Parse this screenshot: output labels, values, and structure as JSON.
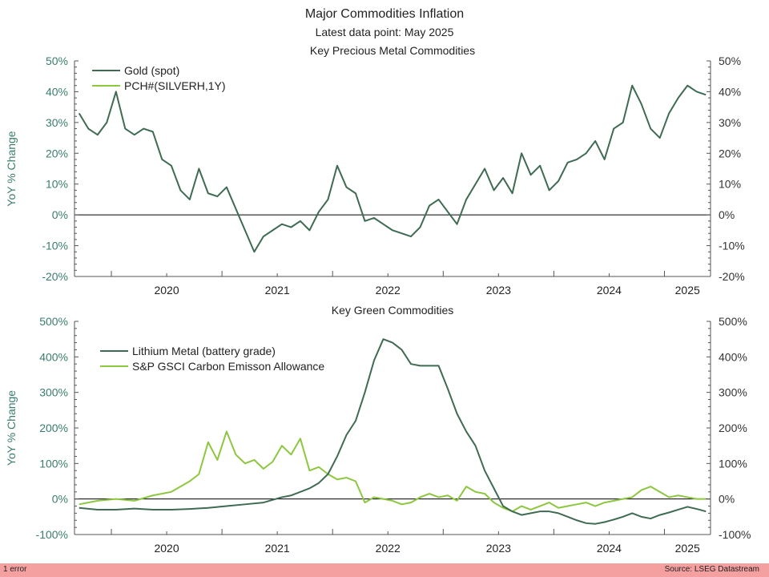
{
  "title": "Major Commodities Inflation",
  "subtitle": "Latest data point: May 2025",
  "footer": {
    "status": "1 error",
    "source": "Source: LSEG Datastream"
  },
  "colors": {
    "dark_green": "#3e6b52",
    "light_green": "#8dc63f",
    "axis_teal": "#3a7d6e",
    "axis": "#555555"
  },
  "chart_data": [
    {
      "type": "line",
      "title": "Key Precious Metal Commodities",
      "ylabel": "YoY % Change",
      "ylim": [
        -20,
        50
      ],
      "yticks": [
        -20,
        -10,
        0,
        10,
        20,
        30,
        40,
        50
      ],
      "ytick_labels": [
        "-20%",
        "-10%",
        "0%",
        "10%",
        "20%",
        "30%",
        "40%",
        "50%"
      ],
      "xlim": [
        "2019-09-01",
        "2025-06-01"
      ],
      "xtick_labels": [
        "2020",
        "2021",
        "2022",
        "2023",
        "2024",
        "2025"
      ],
      "legend_position": "top-left",
      "series": [
        {
          "name": "Gold (spot)",
          "color": "#3e6b52",
          "x": [
            "2019-09",
            "2019-10",
            "2019-11",
            "2019-12",
            "2020-01",
            "2020-02",
            "2020-03",
            "2020-04",
            "2020-05",
            "2020-06",
            "2020-07",
            "2020-08",
            "2020-09",
            "2020-10",
            "2020-11",
            "2020-12",
            "2021-01",
            "2021-02",
            "2021-03",
            "2021-04",
            "2021-05",
            "2021-06",
            "2021-07",
            "2021-08",
            "2021-09",
            "2021-10",
            "2021-11",
            "2021-12",
            "2022-01",
            "2022-02",
            "2022-03",
            "2022-04",
            "2022-05",
            "2022-06",
            "2022-07",
            "2022-08",
            "2022-09",
            "2022-10",
            "2022-11",
            "2022-12",
            "2023-01",
            "2023-02",
            "2023-03",
            "2023-04",
            "2023-05",
            "2023-06",
            "2023-07",
            "2023-08",
            "2023-09",
            "2023-10",
            "2023-11",
            "2023-12",
            "2024-01",
            "2024-02",
            "2024-03",
            "2024-04",
            "2024-05",
            "2024-06",
            "2024-07",
            "2024-08",
            "2024-09",
            "2024-10",
            "2024-11",
            "2024-12",
            "2025-01",
            "2025-02",
            "2025-03",
            "2025-04",
            "2025-05"
          ],
          "values": [
            33,
            28,
            26,
            30,
            40,
            28,
            26,
            28,
            27,
            18,
            16,
            8,
            5,
            15,
            7,
            6,
            9,
            2,
            -5,
            -12,
            -7,
            -5,
            -3,
            -4,
            -2,
            -5,
            1,
            5,
            16,
            9,
            7,
            -2,
            -1,
            -3,
            -5,
            -6,
            -7,
            -4,
            3,
            5,
            1,
            -3,
            5,
            10,
            15,
            8,
            12,
            7,
            20,
            13,
            16,
            8,
            11,
            17,
            18,
            20,
            24,
            18,
            28,
            30,
            42,
            36,
            28,
            25,
            33,
            38,
            42,
            40,
            39
          ]
        },
        {
          "name": "PCH#(SILVERH,1Y)",
          "color": "#8dc63f",
          "x": [],
          "values": []
        }
      ]
    },
    {
      "type": "line",
      "title": "Key Green Commodities",
      "ylabel": "YoY % Change",
      "ylim": [
        -100,
        500
      ],
      "yticks": [
        -100,
        0,
        100,
        200,
        300,
        400,
        500
      ],
      "ytick_labels": [
        "-100%",
        "0%",
        "100%",
        "200%",
        "300%",
        "400%",
        "500%"
      ],
      "xlim": [
        "2019-09-01",
        "2025-06-01"
      ],
      "xtick_labels": [
        "2020",
        "2021",
        "2022",
        "2023",
        "2024",
        "2025"
      ],
      "legend_position": "top-left",
      "series": [
        {
          "name": "Lithium Metal (battery grade)",
          "color": "#3e6b52",
          "x": [
            "2019-09",
            "2019-11",
            "2020-01",
            "2020-03",
            "2020-05",
            "2020-07",
            "2020-09",
            "2020-11",
            "2021-01",
            "2021-03",
            "2021-05",
            "2021-07",
            "2021-08",
            "2021-09",
            "2021-10",
            "2021-11",
            "2021-12",
            "2022-01",
            "2022-02",
            "2022-03",
            "2022-04",
            "2022-05",
            "2022-06",
            "2022-07",
            "2022-08",
            "2022-09",
            "2022-10",
            "2022-11",
            "2022-12",
            "2023-01",
            "2023-02",
            "2023-03",
            "2023-04",
            "2023-05",
            "2023-06",
            "2023-07",
            "2023-08",
            "2023-09",
            "2023-10",
            "2023-11",
            "2023-12",
            "2024-01",
            "2024-02",
            "2024-03",
            "2024-04",
            "2024-05",
            "2024-06",
            "2024-07",
            "2024-08",
            "2024-09",
            "2024-10",
            "2024-11",
            "2024-12",
            "2025-01",
            "2025-02",
            "2025-03",
            "2025-04",
            "2025-05"
          ],
          "values": [
            -25,
            -30,
            -30,
            -27,
            -30,
            -30,
            -28,
            -25,
            -20,
            -15,
            -10,
            5,
            10,
            20,
            30,
            45,
            70,
            120,
            180,
            220,
            300,
            390,
            450,
            440,
            420,
            380,
            375,
            375,
            375,
            310,
            240,
            190,
            150,
            80,
            30,
            -20,
            -35,
            -45,
            -40,
            -35,
            -35,
            -40,
            -50,
            -60,
            -68,
            -70,
            -65,
            -58,
            -50,
            -40,
            -50,
            -55,
            -45,
            -38,
            -30,
            -22,
            -28,
            -35
          ]
        },
        {
          "name": "S&P GSCI Carbon Emisson Allowance",
          "color": "#8dc63f",
          "x": [
            "2019-09",
            "2019-11",
            "2020-01",
            "2020-03",
            "2020-05",
            "2020-07",
            "2020-09",
            "2020-10",
            "2020-11",
            "2020-12",
            "2021-01",
            "2021-02",
            "2021-03",
            "2021-04",
            "2021-05",
            "2021-06",
            "2021-07",
            "2021-08",
            "2021-09",
            "2021-10",
            "2021-11",
            "2021-12",
            "2022-01",
            "2022-02",
            "2022-03",
            "2022-04",
            "2022-05",
            "2022-06",
            "2022-07",
            "2022-08",
            "2022-09",
            "2022-10",
            "2022-11",
            "2022-12",
            "2023-01",
            "2023-02",
            "2023-03",
            "2023-04",
            "2023-05",
            "2023-06",
            "2023-07",
            "2023-08",
            "2023-09",
            "2023-10",
            "2023-11",
            "2023-12",
            "2024-01",
            "2024-02",
            "2024-03",
            "2024-04",
            "2024-05",
            "2024-06",
            "2024-07",
            "2024-08",
            "2024-09",
            "2024-10",
            "2024-11",
            "2024-12",
            "2025-01",
            "2025-02",
            "2025-03",
            "2025-04",
            "2025-05"
          ],
          "values": [
            -15,
            -5,
            0,
            -5,
            10,
            20,
            50,
            70,
            160,
            110,
            190,
            125,
            100,
            110,
            85,
            105,
            150,
            125,
            170,
            80,
            90,
            70,
            55,
            60,
            50,
            -10,
            5,
            0,
            -5,
            -15,
            -10,
            5,
            15,
            5,
            10,
            -5,
            35,
            20,
            15,
            -10,
            -25,
            -35,
            -20,
            -30,
            -20,
            -10,
            -25,
            -20,
            -15,
            -10,
            -20,
            -10,
            -5,
            0,
            5,
            25,
            35,
            20,
            5,
            10,
            5,
            0,
            0
          ]
        }
      ]
    }
  ]
}
